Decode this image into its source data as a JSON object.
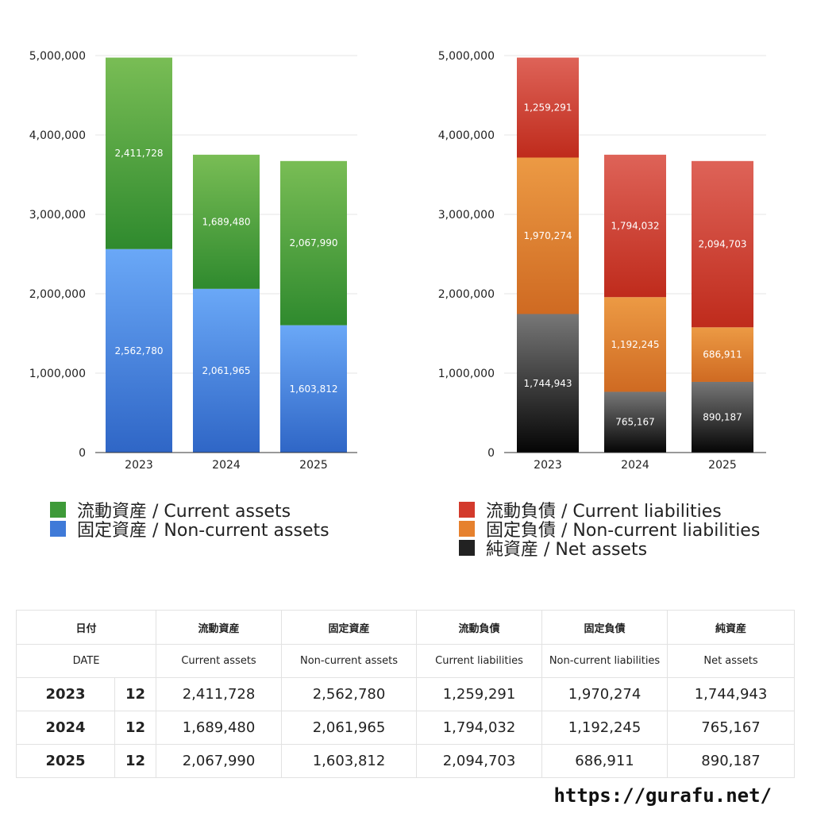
{
  "chart_data": [
    {
      "type": "bar",
      "stacked": true,
      "categories": [
        "2023",
        "2024",
        "2025"
      ],
      "ylim": [
        0,
        5000000
      ],
      "yticks": [
        "0",
        "1,000,000",
        "2,000,000",
        "3,000,000",
        "4,000,000",
        "5,000,000"
      ],
      "grid": true,
      "series": [
        {
          "name": "固定資産 / Non-current assets",
          "values": [
            2562780,
            2061965,
            1603812
          ],
          "labels": [
            "2,562,780",
            "2,061,965",
            "1,603,812"
          ],
          "color_top": "#6aa8f7",
          "color_bottom": "#2f66c6"
        },
        {
          "name": "流動資産 / Current assets",
          "values": [
            2411728,
            1689480,
            2067990
          ],
          "labels": [
            "2,411,728",
            "1,689,480",
            "2,067,990"
          ],
          "color_top": "#79bd55",
          "color_bottom": "#2f8a2e"
        }
      ],
      "legend": [
        "流動資産 / Current assets",
        "固定資産 / Non-current assets"
      ],
      "legend_colors": [
        "#3e9a38",
        "#3f7ad8"
      ]
    },
    {
      "type": "bar",
      "stacked": true,
      "categories": [
        "2023",
        "2024",
        "2025"
      ],
      "ylim": [
        0,
        5000000
      ],
      "yticks": [
        "0",
        "1,000,000",
        "2,000,000",
        "3,000,000",
        "4,000,000",
        "5,000,000"
      ],
      "grid": true,
      "series": [
        {
          "name": "純資産 / Net assets",
          "values": [
            1744943,
            765167,
            890187
          ],
          "labels": [
            "1,744,943",
            "765,167",
            "890,187"
          ],
          "color_top": "#777777",
          "color_bottom": "#050505"
        },
        {
          "name": "固定負債 / Non-current liabilities",
          "values": [
            1970274,
            1192245,
            686911
          ],
          "labels": [
            "1,970,274",
            "1,192,245",
            "686,911"
          ],
          "color_top": "#ec9a44",
          "color_bottom": "#cf6a22"
        },
        {
          "name": "流動負債 / Current liabilities",
          "values": [
            1259291,
            1794032,
            2094703
          ],
          "labels": [
            "1,259,291",
            "1,794,032",
            "2,094,703"
          ],
          "color_top": "#de6358",
          "color_bottom": "#bf2b1c"
        }
      ],
      "legend": [
        "流動負債 / Current liabilities",
        "固定負債 / Non-current liabilities",
        "純資産 / Net assets"
      ],
      "legend_colors": [
        "#d33a2c",
        "#e6812e",
        "#222222"
      ]
    }
  ],
  "table": {
    "header1": [
      "日付",
      "",
      "流動資産",
      "固定資産",
      "流動負債",
      "固定負債",
      "純資産"
    ],
    "header2": [
      "DATE",
      "",
      "Current assets",
      "Non-current assets",
      "Current liabilities",
      "Non-current liabilities",
      "Net assets"
    ],
    "rows": [
      [
        "2023",
        "12",
        "2,411,728",
        "2,562,780",
        "1,259,291",
        "1,970,274",
        "1,744,943"
      ],
      [
        "2024",
        "12",
        "1,689,480",
        "2,061,965",
        "1,794,032",
        "1,192,245",
        "765,167"
      ],
      [
        "2025",
        "12",
        "2,067,990",
        "1,603,812",
        "2,094,703",
        "686,911",
        "890,187"
      ]
    ]
  },
  "site_url": "https://gurafu.net/"
}
